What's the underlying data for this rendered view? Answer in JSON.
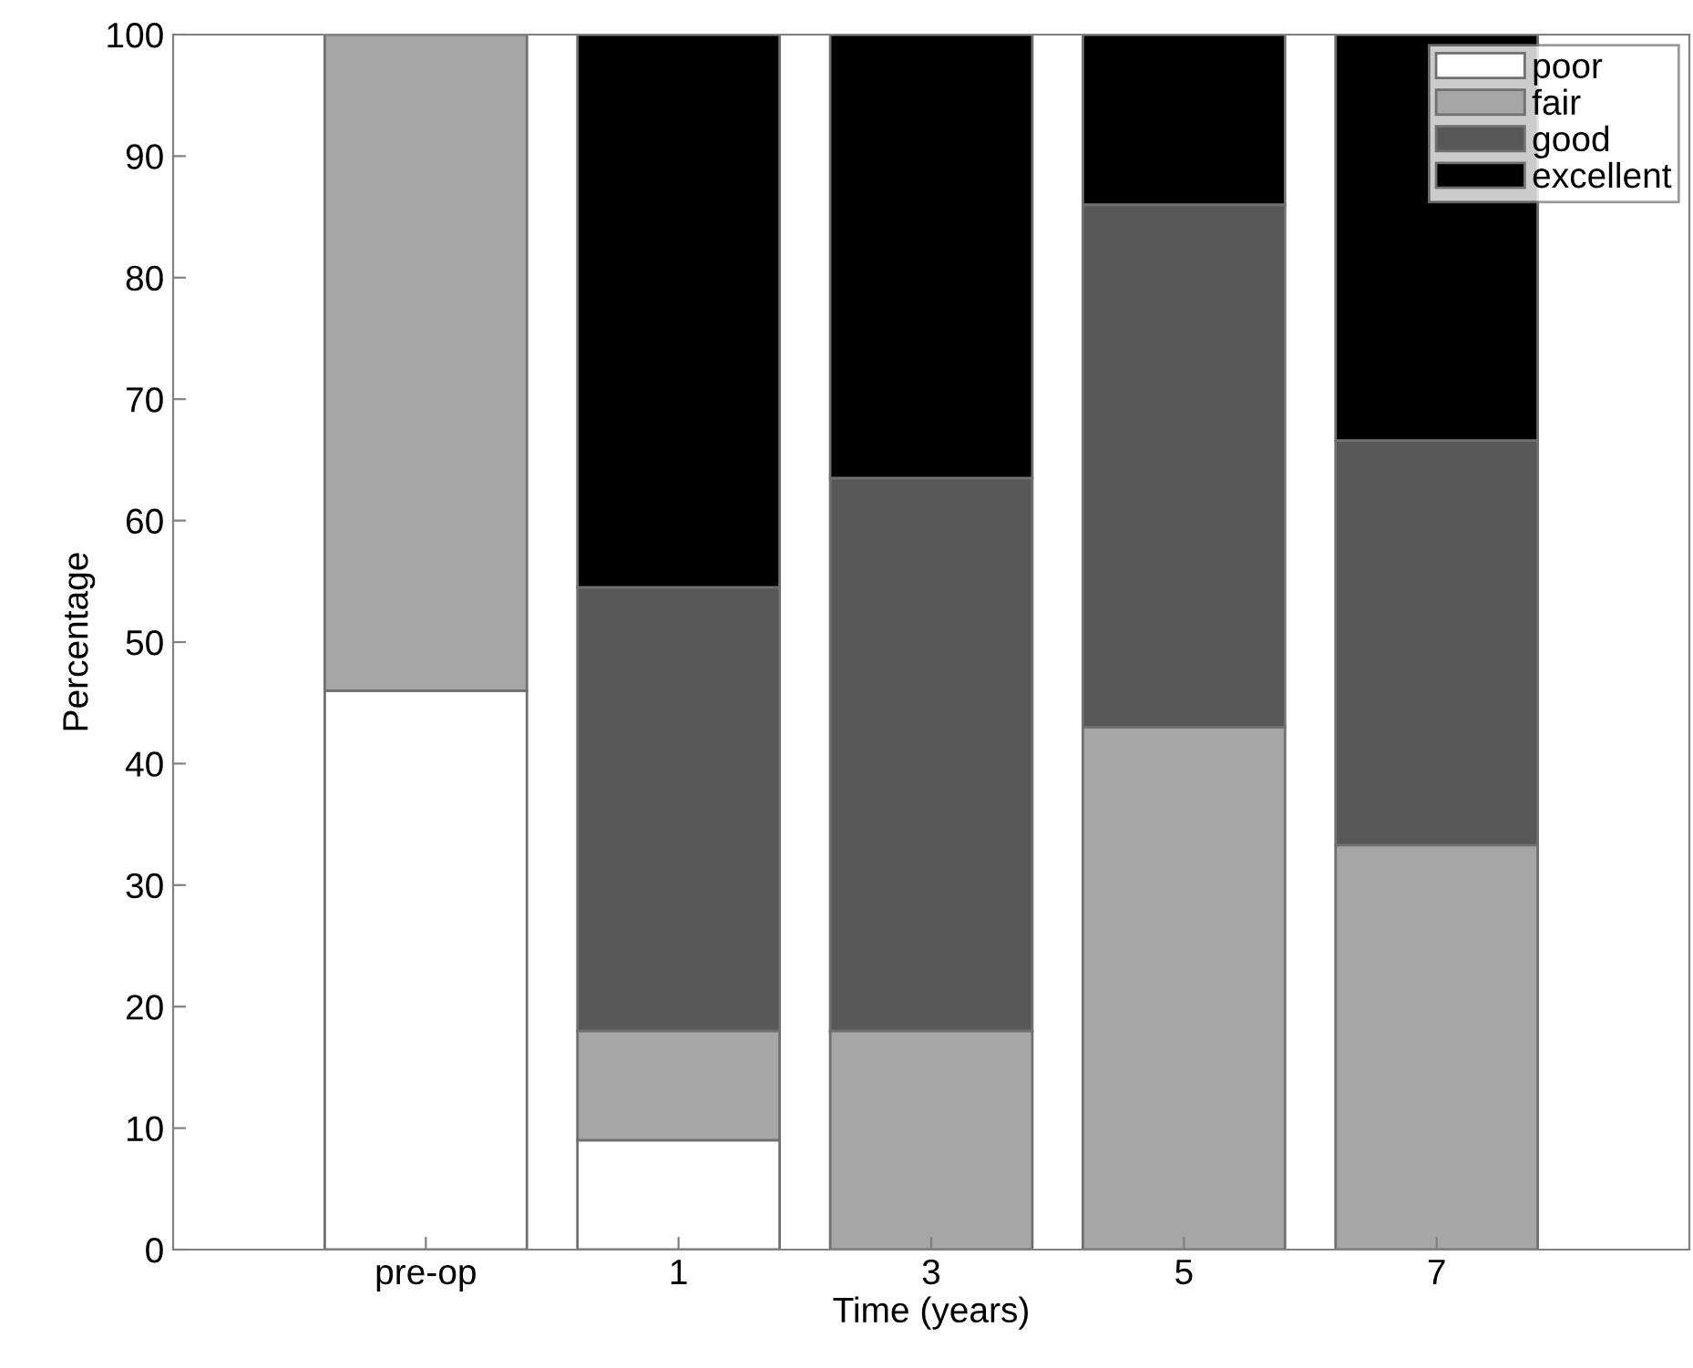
{
  "chart_data": {
    "type": "bar",
    "stacked": true,
    "xlabel": "Time (years)",
    "ylabel": "Percentage",
    "categories": [
      "pre-op",
      "1",
      "3",
      "5",
      "7"
    ],
    "series": [
      {
        "name": "poor",
        "color": "#ffffff",
        "values": [
          46,
          9,
          null,
          null,
          null
        ]
      },
      {
        "name": "fair",
        "color": "#a6a6a6",
        "values": [
          54,
          9,
          18,
          43,
          33.3
        ]
      },
      {
        "name": "good",
        "color": "#585858",
        "values": [
          null,
          36.5,
          45.5,
          43,
          33.3
        ]
      },
      {
        "name": "excellent",
        "color": "#000000",
        "values": [
          null,
          45.5,
          36.5,
          14,
          33.4
        ]
      }
    ],
    "ylim": [
      0,
      100
    ],
    "yticks": [
      0,
      10,
      20,
      30,
      40,
      50,
      60,
      70,
      80,
      90,
      100
    ],
    "grid": false,
    "legend": "top right"
  }
}
